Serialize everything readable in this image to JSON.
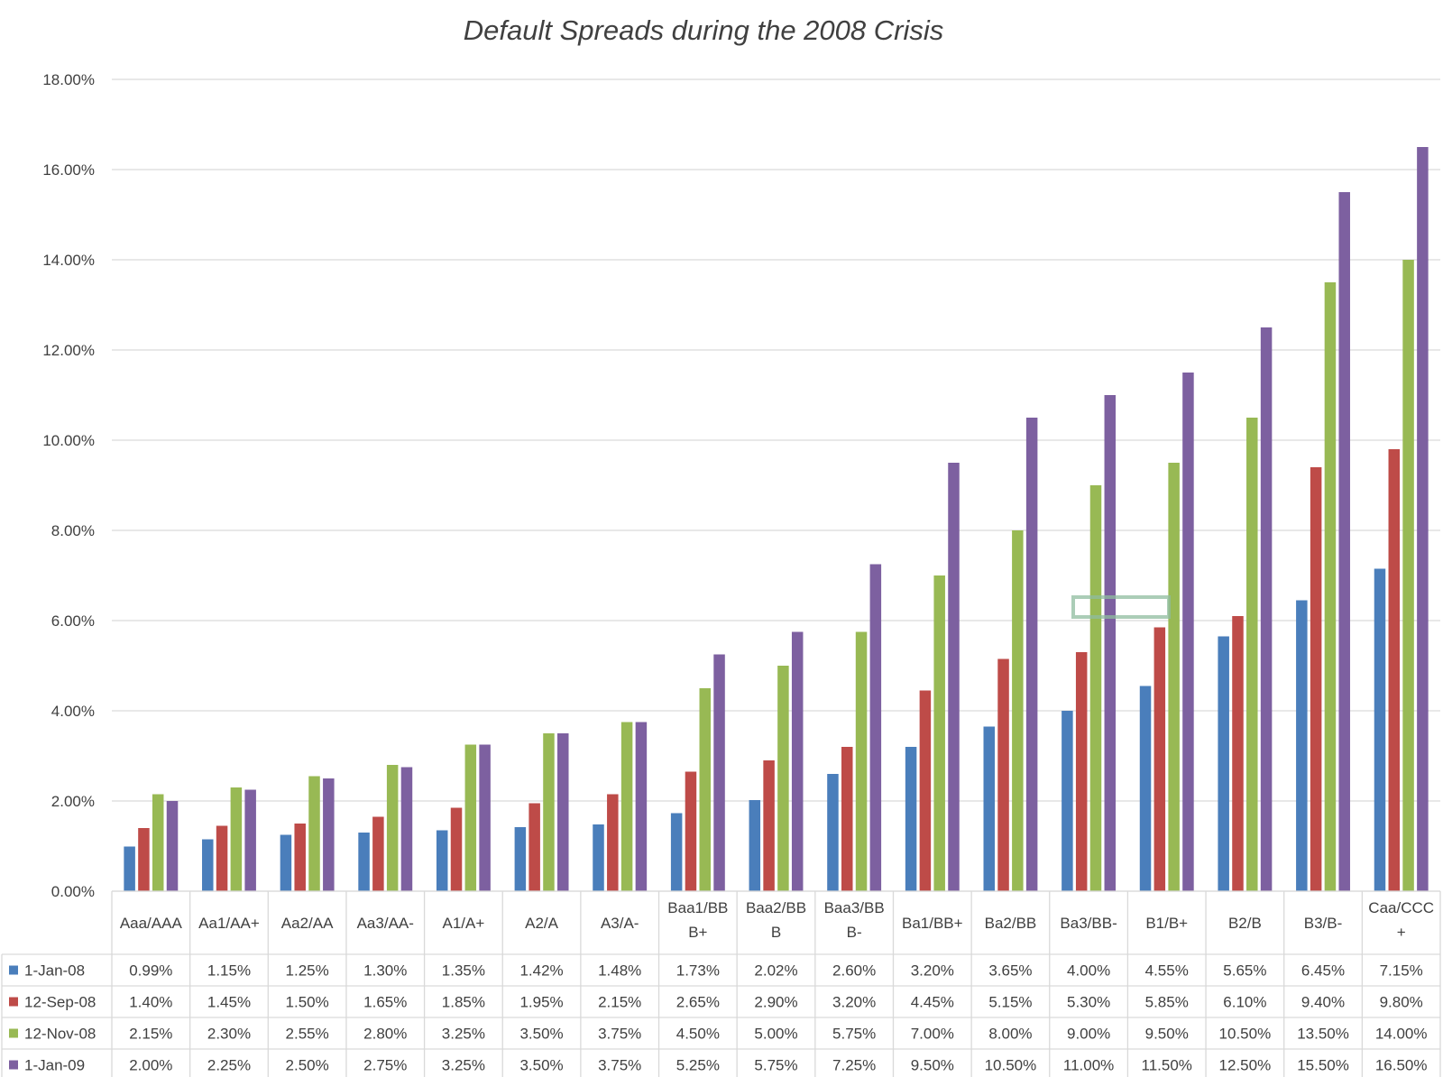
{
  "chart_data": {
    "type": "bar",
    "title": "Default Spreads during the 2008 Crisis",
    "categories": [
      [
        "Aaa/AAA"
      ],
      [
        "Aa1/AA+"
      ],
      [
        "Aa2/AA"
      ],
      [
        "Aa3/AA-"
      ],
      [
        "A1/A+"
      ],
      [
        "A2/A"
      ],
      [
        "A3/A-"
      ],
      [
        "Baa1/BB",
        "B+"
      ],
      [
        "Baa2/BB",
        "B"
      ],
      [
        "Baa3/BB",
        "B-"
      ],
      [
        "Ba1/BB+"
      ],
      [
        "Ba2/BB"
      ],
      [
        "Ba3/BB-"
      ],
      [
        "B1/B+"
      ],
      [
        "B2/B"
      ],
      [
        "B3/B-"
      ],
      [
        "Caa/CCC",
        "+"
      ]
    ],
    "ylim": [
      0,
      18
    ],
    "yticks": [
      "0.00%",
      "2.00%",
      "4.00%",
      "6.00%",
      "8.00%",
      "10.00%",
      "12.00%",
      "14.00%",
      "16.00%",
      "18.00%"
    ],
    "grid": true,
    "legend": "data-table",
    "series": [
      {
        "name": "1-Jan-08",
        "color": "#4a7ebb",
        "values": [
          0.99,
          1.15,
          1.25,
          1.3,
          1.35,
          1.42,
          1.48,
          1.73,
          2.02,
          2.6,
          3.2,
          3.65,
          4.0,
          4.55,
          5.65,
          6.45,
          7.15
        ],
        "labels": [
          "0.99%",
          "1.15%",
          "1.25%",
          "1.30%",
          "1.35%",
          "1.42%",
          "1.48%",
          "1.73%",
          "2.02%",
          "2.60%",
          "3.20%",
          "3.65%",
          "4.00%",
          "4.55%",
          "5.65%",
          "6.45%",
          "7.15%"
        ]
      },
      {
        "name": "12-Sep-08",
        "color": "#be4b48",
        "values": [
          1.4,
          1.45,
          1.5,
          1.65,
          1.85,
          1.95,
          2.15,
          2.65,
          2.9,
          3.2,
          4.45,
          5.15,
          5.3,
          5.85,
          6.1,
          9.4,
          9.8
        ],
        "labels": [
          "1.40%",
          "1.45%",
          "1.50%",
          "1.65%",
          "1.85%",
          "1.95%",
          "2.15%",
          "2.65%",
          "2.90%",
          "3.20%",
          "4.45%",
          "5.15%",
          "5.30%",
          "5.85%",
          "6.10%",
          "9.40%",
          "9.80%"
        ]
      },
      {
        "name": "12-Nov-08",
        "color": "#98b954",
        "values": [
          2.15,
          2.3,
          2.55,
          2.8,
          3.25,
          3.5,
          3.75,
          4.5,
          5.0,
          5.75,
          7.0,
          8.0,
          9.0,
          9.5,
          10.5,
          13.5,
          14.0
        ],
        "labels": [
          "2.15%",
          "2.30%",
          "2.55%",
          "2.80%",
          "3.25%",
          "3.50%",
          "3.75%",
          "4.50%",
          "5.00%",
          "5.75%",
          "7.00%",
          "8.00%",
          "9.00%",
          "9.50%",
          "10.50%",
          "13.50%",
          "14.00%"
        ]
      },
      {
        "name": "1-Jan-09",
        "color": "#7d60a0",
        "values": [
          2.0,
          2.25,
          2.5,
          2.75,
          3.25,
          3.5,
          3.75,
          5.25,
          5.75,
          7.25,
          9.5,
          10.5,
          11.0,
          11.5,
          12.5,
          15.5,
          16.5
        ],
        "labels": [
          "2.00%",
          "2.25%",
          "2.50%",
          "2.75%",
          "3.25%",
          "3.50%",
          "3.75%",
          "5.25%",
          "5.75%",
          "7.25%",
          "9.50%",
          "10.50%",
          "11.00%",
          "11.50%",
          "12.50%",
          "15.50%",
          "16.50%"
        ]
      }
    ]
  },
  "colors": {
    "grid": "#d9d9d9",
    "text": "#404040",
    "highlight_box": "#8fbc9f"
  }
}
